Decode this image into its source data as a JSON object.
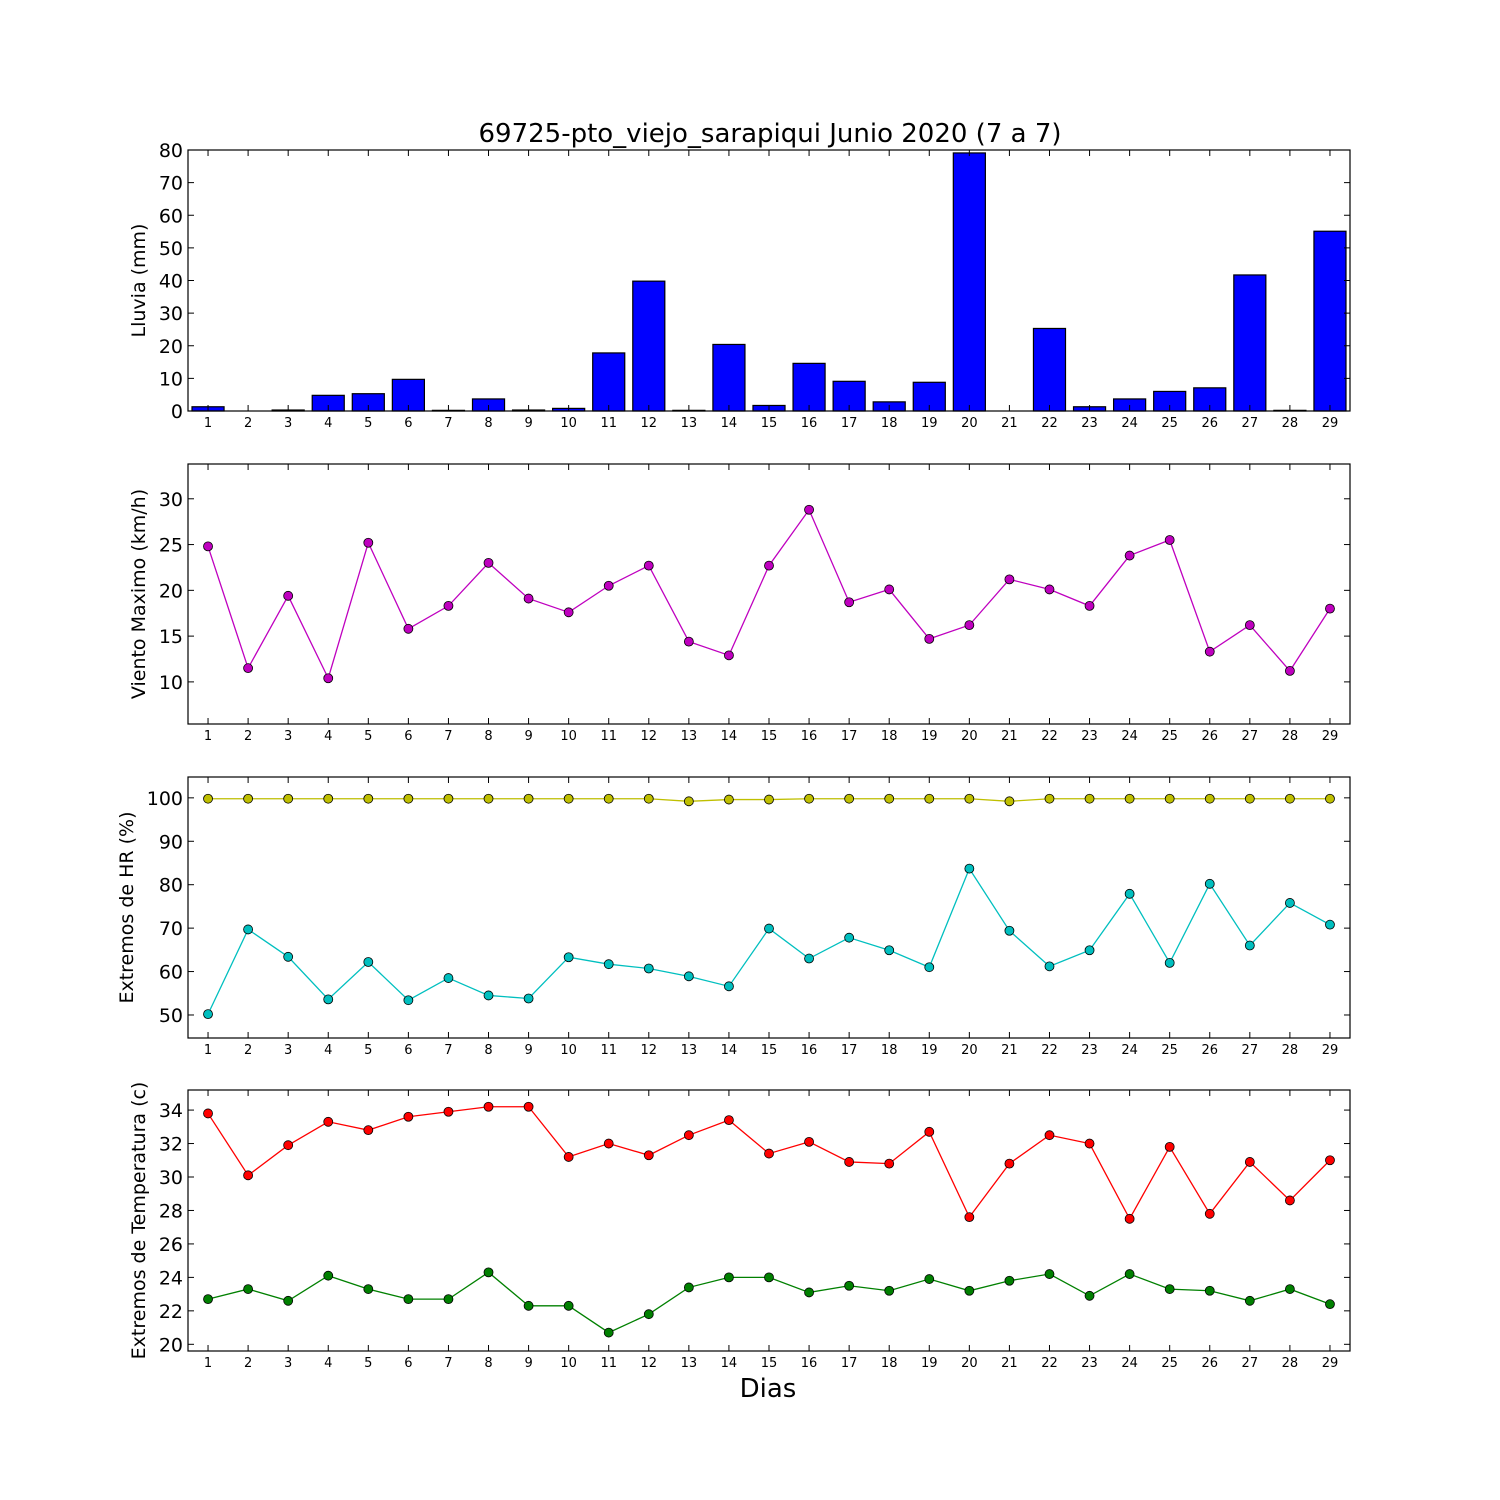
{
  "title": "69725-pto_viejo_sarapiqui Junio 2020  (7 a 7)",
  "xlabel": "Dias",
  "chart_data": [
    {
      "type": "bar",
      "ylabel": "Lluvia (mm)",
      "ylim": [
        0,
        80
      ],
      "yticks": [
        0,
        10,
        20,
        30,
        40,
        50,
        60,
        70,
        80
      ],
      "x": [
        1,
        2,
        3,
        4,
        5,
        6,
        7,
        8,
        9,
        10,
        11,
        12,
        13,
        14,
        15,
        16,
        17,
        18,
        19,
        20,
        21,
        22,
        23,
        24,
        25,
        26,
        27,
        28,
        29
      ],
      "series": [
        {
          "color": "#0000ff",
          "values": [
            1.3,
            0,
            0.3,
            4.8,
            5.3,
            9.7,
            0.2,
            3.7,
            0.3,
            0.8,
            17.8,
            39.8,
            0.2,
            20.4,
            1.7,
            14.6,
            9.1,
            2.8,
            8.8,
            79.1,
            0,
            25.3,
            1.3,
            3.7,
            6.0,
            7.1,
            41.7,
            0.2,
            55.1
          ]
        }
      ]
    },
    {
      "type": "line",
      "ylabel": "Viento Maximo (km/h)",
      "ylim": [
        5.4,
        33.8
      ],
      "yticks": [
        10,
        15,
        20,
        25,
        30
      ],
      "x": [
        1,
        2,
        3,
        4,
        5,
        6,
        7,
        8,
        9,
        10,
        11,
        12,
        13,
        14,
        15,
        16,
        17,
        18,
        19,
        20,
        21,
        22,
        23,
        24,
        25,
        26,
        27,
        28,
        29
      ],
      "series": [
        {
          "color": "#bf00bf",
          "values": [
            24.8,
            11.5,
            19.4,
            10.4,
            25.2,
            15.8,
            18.3,
            23.0,
            19.1,
            17.6,
            20.5,
            22.7,
            14.4,
            12.9,
            22.7,
            28.8,
            18.7,
            20.1,
            14.7,
            16.2,
            21.2,
            20.1,
            18.3,
            23.8,
            25.5,
            13.3,
            16.2,
            11.2,
            18.0
          ]
        }
      ]
    },
    {
      "type": "line",
      "ylabel": "Extremos de HR (%)",
      "ylim": [
        44.7,
        104.8
      ],
      "yticks": [
        50,
        60,
        70,
        80,
        90,
        100
      ],
      "x": [
        1,
        2,
        3,
        4,
        5,
        6,
        7,
        8,
        9,
        10,
        11,
        12,
        13,
        14,
        15,
        16,
        17,
        18,
        19,
        20,
        21,
        22,
        23,
        24,
        25,
        26,
        27,
        28,
        29
      ],
      "series": [
        {
          "color": "#bfbf00",
          "values": [
            99.8,
            99.8,
            99.8,
            99.8,
            99.8,
            99.8,
            99.8,
            99.8,
            99.8,
            99.8,
            99.8,
            99.8,
            99.2,
            99.6,
            99.6,
            99.8,
            99.8,
            99.8,
            99.8,
            99.8,
            99.2,
            99.8,
            99.8,
            99.8,
            99.8,
            99.8,
            99.8,
            99.8,
            99.8
          ]
        },
        {
          "color": "#00bfbf",
          "values": [
            50.2,
            69.7,
            63.4,
            53.6,
            62.2,
            53.4,
            58.5,
            54.5,
            53.8,
            63.3,
            61.7,
            60.7,
            58.9,
            56.6,
            69.9,
            63.0,
            67.8,
            64.9,
            61.0,
            83.7,
            69.4,
            61.2,
            64.9,
            77.9,
            62.0,
            80.2,
            66.0,
            75.8,
            70.8
          ]
        }
      ]
    },
    {
      "type": "line",
      "ylabel": "Extremos de Temperatura (c)",
      "ylim": [
        19.6,
        35.2
      ],
      "yticks": [
        20,
        22,
        24,
        26,
        28,
        30,
        32,
        34
      ],
      "x": [
        1,
        2,
        3,
        4,
        5,
        6,
        7,
        8,
        9,
        10,
        11,
        12,
        13,
        14,
        15,
        16,
        17,
        18,
        19,
        20,
        21,
        22,
        23,
        24,
        25,
        26,
        27,
        28,
        29
      ],
      "series": [
        {
          "color": "#ff0000",
          "values": [
            33.8,
            30.1,
            31.9,
            33.3,
            32.8,
            33.6,
            33.9,
            34.2,
            34.2,
            31.2,
            32.0,
            31.3,
            32.5,
            33.4,
            31.4,
            32.1,
            30.9,
            30.8,
            32.7,
            27.6,
            30.8,
            32.5,
            32.0,
            27.5,
            31.8,
            27.8,
            30.9,
            28.6,
            31.0
          ]
        },
        {
          "color": "#008000",
          "values": [
            22.7,
            23.3,
            22.6,
            24.1,
            23.3,
            22.7,
            22.7,
            24.3,
            22.3,
            22.3,
            20.7,
            21.8,
            23.4,
            24.0,
            24.0,
            23.1,
            23.5,
            23.2,
            23.9,
            23.2,
            23.8,
            24.2,
            22.9,
            24.2,
            23.3,
            23.2,
            22.6,
            23.3,
            22.4
          ]
        }
      ]
    }
  ]
}
